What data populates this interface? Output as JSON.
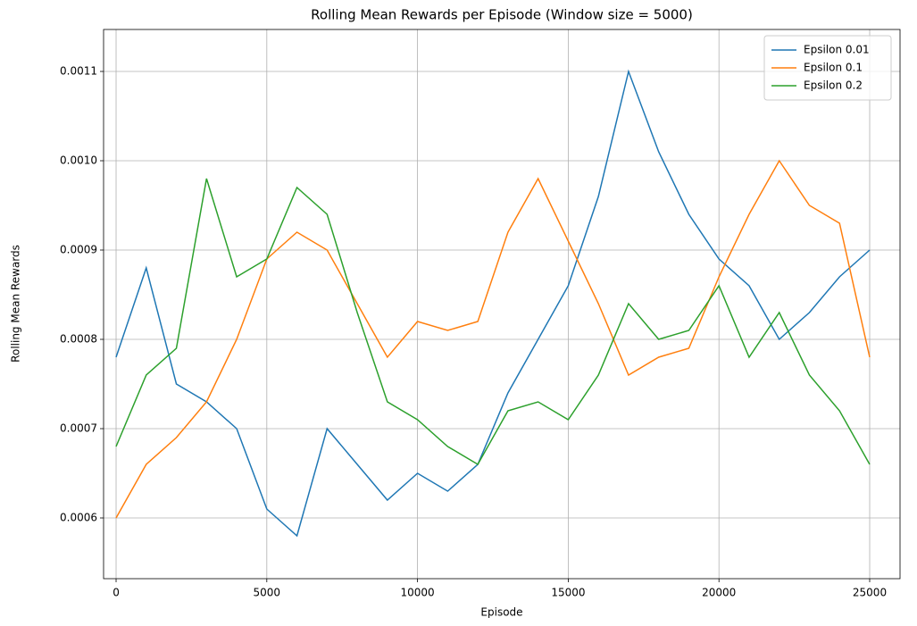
{
  "chart_data": {
    "type": "line",
    "title": "Rolling Mean Rewards per Episode (Window size = 5000)",
    "x_label": "Episode",
    "y_label": "Rolling Mean Rewards",
    "x": [
      0,
      1000,
      2000,
      3000,
      4000,
      5000,
      6000,
      7000,
      8000,
      9000,
      10000,
      11000,
      12000,
      13000,
      14000,
      15000,
      16000,
      17000,
      18000,
      19000,
      20000,
      21000,
      22000,
      23000,
      24000,
      25000
    ],
    "series": [
      {
        "name": "Epsilon 0.01",
        "color": "#1f77b4",
        "values": [
          0.00078,
          0.00088,
          0.00075,
          0.00073,
          0.0007,
          0.00061,
          0.00058,
          0.0007,
          0.00066,
          0.00062,
          0.00065,
          0.00063,
          0.00066,
          0.00074,
          0.0008,
          0.00086,
          0.00096,
          0.0011,
          0.00101,
          0.00094,
          0.00089,
          0.00086,
          0.0008,
          0.00083,
          0.00087,
          0.0009
        ]
      },
      {
        "name": "Epsilon 0.1",
        "color": "#ff7f0e",
        "values": [
          0.0006,
          0.00066,
          0.00069,
          0.00073,
          0.0008,
          0.00089,
          0.00092,
          0.0009,
          0.00084,
          0.00078,
          0.00082,
          0.00081,
          0.00082,
          0.00092,
          0.00098,
          0.00091,
          0.00084,
          0.00076,
          0.00078,
          0.00079,
          0.00087,
          0.00094,
          0.001,
          0.00095,
          0.00093,
          0.00078
        ]
      },
      {
        "name": "Epsilon 0.2",
        "color": "#2ca02c",
        "values": [
          0.00068,
          0.00076,
          0.00079,
          0.00098,
          0.00087,
          0.00089,
          0.00097,
          0.00094,
          0.00083,
          0.00073,
          0.00071,
          0.00068,
          0.00066,
          0.00072,
          0.00073,
          0.00071,
          0.00076,
          0.00084,
          0.0008,
          0.00081,
          0.00086,
          0.00078,
          0.00083,
          0.00076,
          0.00072,
          0.00066
        ]
      }
    ],
    "xlim": [
      -415,
      26007
    ],
    "ylim": [
      0.000532,
      0.001147
    ],
    "xticks": [
      0,
      5000,
      10000,
      15000,
      20000,
      25000
    ],
    "yticks": [
      0.0006,
      0.0007,
      0.0008,
      0.0009,
      {
        "value": 0.001,
        "label": "0.0010"
      },
      0.0011
    ],
    "grid": true,
    "legend": "upper right"
  }
}
